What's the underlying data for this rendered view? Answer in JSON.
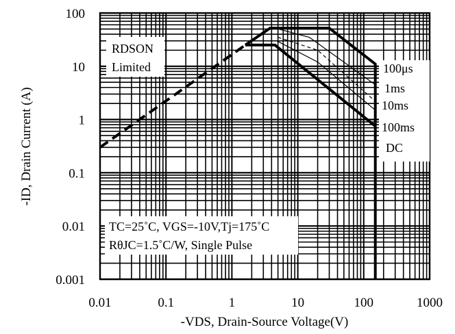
{
  "chart_data": {
    "type": "line",
    "title": "",
    "xlabel": "-VDS, Drain-Source Voltage(V)",
    "ylabel": "-ID, Drain Current (A)",
    "x_scale": "log",
    "y_scale": "log",
    "xlim": [
      0.01,
      1000
    ],
    "ylim": [
      0.001,
      100
    ],
    "grid": true,
    "x_ticks": [
      "0.01",
      "0.1",
      "1",
      "10",
      "100",
      "1000"
    ],
    "y_ticks": [
      "0.001",
      "0.01",
      "0.1",
      "1",
      "10",
      "100"
    ],
    "series": [
      {
        "name": "RDSON Limited",
        "style": "dashed-thick",
        "x": [
          0.01,
          1.6
        ],
        "y": [
          0.3,
          25
        ]
      },
      {
        "name": "100μs",
        "style": "solid-thick",
        "x": [
          1.6,
          3.8,
          30,
          150,
          150
        ],
        "y": [
          25,
          52,
          52,
          11,
          0.001
        ]
      },
      {
        "name": "1ms",
        "style": "thin",
        "x": [
          4.5,
          15,
          150
        ],
        "y": [
          52,
          35,
          4.5
        ]
      },
      {
        "name": "10ms",
        "style": "thin-dashed",
        "x": [
          5,
          20,
          150
        ],
        "y": [
          35,
          20,
          2.2
        ]
      },
      {
        "name": "100ms",
        "style": "thin",
        "x": [
          4.8,
          20,
          150
        ],
        "y": [
          30,
          12,
          1.5
        ]
      },
      {
        "name": "DC",
        "style": "solid-thick",
        "x": [
          1.6,
          4.5,
          150
        ],
        "y": [
          25,
          25,
          0.75
        ]
      }
    ],
    "labels": {
      "rdson_top": "RDSON",
      "rdson_bottom": "Limited",
      "l100us": "100μs",
      "l1ms": "1ms",
      "l10ms": "10ms",
      "l100ms": "100ms",
      "ldc": "DC",
      "cond1": "TC=25˚C, VGS=-10V,Tj=175˚C",
      "cond2": "RθJC=1.5˚C/W, Single Pulse"
    }
  }
}
